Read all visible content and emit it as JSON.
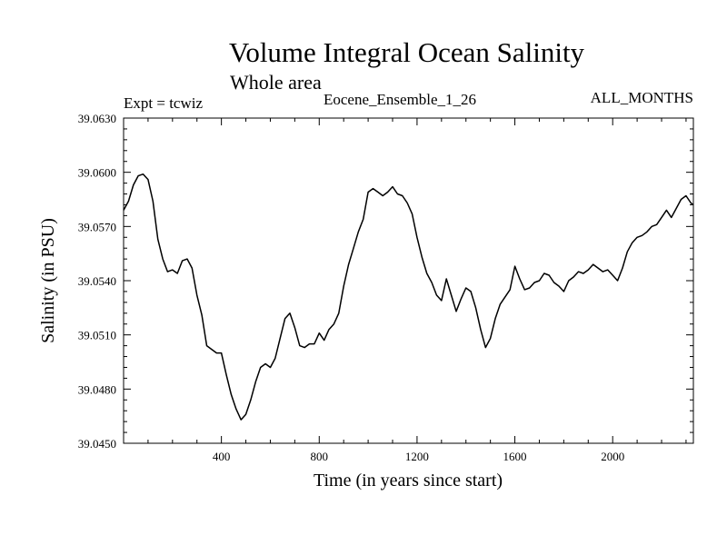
{
  "header": {
    "title": "Volume Integral Ocean Salinity",
    "subtitle": "Whole area",
    "expt": "Expt = tcwiz",
    "run": "Eocene_Ensemble_1_26",
    "months": "ALL_MONTHS"
  },
  "chart_data": {
    "type": "line",
    "title": "Volume Integral Ocean Salinity",
    "subtitle": "Whole area",
    "xlabel": "Time (in years since start)",
    "ylabel": "Salinity (in PSU)",
    "xlim": [
      0,
      2330
    ],
    "ylim": [
      39.045,
      39.063
    ],
    "x_ticks": [
      400,
      800,
      1200,
      1600,
      2000
    ],
    "x_tick_labels": [
      "400",
      "800",
      "1200",
      "1600",
      "2000"
    ],
    "y_ticks": [
      39.045,
      39.048,
      39.051,
      39.054,
      39.057,
      39.06,
      39.063
    ],
    "y_tick_labels": [
      "39.0450",
      "39.0480",
      "39.0510",
      "39.0540",
      "39.0570",
      "39.0600",
      "39.0630"
    ],
    "grid": false,
    "line_color": "#000000",
    "series": [
      {
        "x": [
          0,
          20,
          40,
          60,
          80,
          100,
          120,
          140,
          160,
          180,
          200,
          220,
          240,
          260,
          280,
          300,
          320,
          340,
          360,
          380,
          400,
          420,
          440,
          460,
          480,
          500,
          520,
          540,
          560,
          580,
          600,
          620,
          640,
          660,
          680,
          700,
          720,
          740,
          760,
          780,
          800,
          820,
          840,
          860,
          880,
          900,
          920,
          940,
          960,
          980,
          1000,
          1020,
          1040,
          1060,
          1080,
          1100,
          1120,
          1140,
          1160,
          1180,
          1200,
          1220,
          1240,
          1260,
          1280,
          1300,
          1320,
          1340,
          1360,
          1380,
          1400,
          1420,
          1440,
          1460,
          1480,
          1500,
          1520,
          1540,
          1560,
          1580,
          1600,
          1620,
          1640,
          1660,
          1680,
          1700,
          1720,
          1740,
          1760,
          1780,
          1800,
          1820,
          1840,
          1860,
          1880,
          1900,
          1920,
          1940,
          1960,
          1980,
          2000,
          2020,
          2040,
          2060,
          2080,
          2100,
          2120,
          2140,
          2160,
          2180,
          2200,
          2220,
          2240,
          2260,
          2280,
          2300,
          2320,
          2330
        ],
        "y": [
          39.0579,
          39.0584,
          39.0593,
          39.0598,
          39.0599,
          39.0596,
          39.0584,
          39.0563,
          39.0552,
          39.0545,
          39.0546,
          39.0544,
          39.0551,
          39.0552,
          39.0547,
          39.0532,
          39.0521,
          39.0504,
          39.0502,
          39.05,
          39.05,
          39.0488,
          39.0477,
          39.0469,
          39.0463,
          39.0466,
          39.0474,
          39.0484,
          39.0492,
          39.0494,
          39.0492,
          39.0497,
          39.0508,
          39.0519,
          39.0522,
          39.0514,
          39.0504,
          39.0503,
          39.0505,
          39.0505,
          39.0511,
          39.0507,
          39.0513,
          39.0516,
          39.0522,
          39.0537,
          39.0549,
          39.0558,
          39.0567,
          39.0574,
          39.0589,
          39.0591,
          39.0589,
          39.0587,
          39.0589,
          39.0592,
          39.0588,
          39.0587,
          39.0583,
          39.0577,
          39.0564,
          39.0553,
          39.0544,
          39.0539,
          39.0532,
          39.0529,
          39.0541,
          39.0532,
          39.0523,
          39.053,
          39.0536,
          39.0534,
          39.0525,
          39.0513,
          39.0503,
          39.0508,
          39.0519,
          39.0527,
          39.0531,
          39.0535,
          39.0548,
          39.0541,
          39.0535,
          39.0536,
          39.0539,
          39.054,
          39.0544,
          39.0543,
          39.0539,
          39.0537,
          39.0534,
          39.054,
          39.0542,
          39.0545,
          39.0544,
          39.0546,
          39.0549,
          39.0547,
          39.0545,
          39.0546,
          39.0543,
          39.054,
          39.0547,
          39.0556,
          39.0561,
          39.0564,
          39.0565,
          39.0567,
          39.057,
          39.0571,
          39.0575,
          39.0579,
          39.0575,
          39.058,
          39.0585,
          39.0587,
          39.0583,
          39.0582
        ]
      }
    ]
  }
}
